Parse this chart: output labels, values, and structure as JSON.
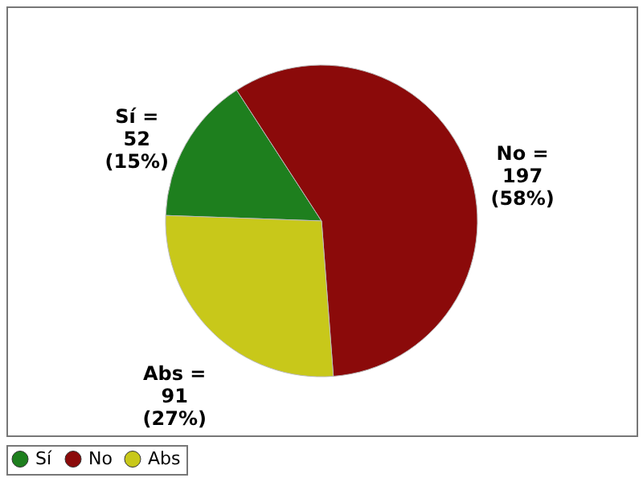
{
  "chart_data": {
    "type": "pie",
    "categories": [
      "Sí",
      "No",
      "Abs"
    ],
    "values": [
      52,
      197,
      91
    ],
    "colors": [
      "#1e7f1e",
      "#8b0a0a",
      "#c8c81a"
    ],
    "value_labels": [
      "Sí = 52 (15%)",
      "No = 197 (58%)",
      "Abs = 91 (27%)"
    ],
    "legend": "bottom"
  }
}
